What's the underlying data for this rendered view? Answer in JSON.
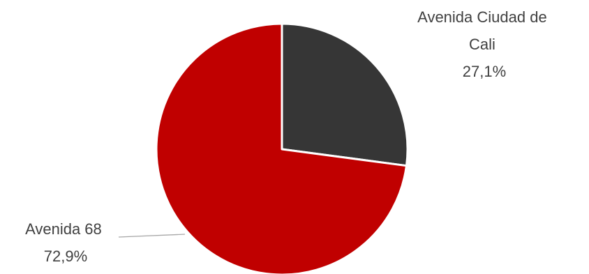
{
  "chart_data": {
    "type": "pie",
    "slices": [
      {
        "label_lines": [
          "Avenida Ciudad de",
          "Cali"
        ],
        "value": 27.1,
        "value_label": "27,1%",
        "color": "#363636"
      },
      {
        "label_lines": [
          "Avenida 68"
        ],
        "value": 72.9,
        "value_label": "72,9%",
        "color": "#c00000"
      }
    ],
    "slice_border_color": "#ffffff",
    "leader_line_color": "#a6a6a6",
    "legend": "none"
  }
}
